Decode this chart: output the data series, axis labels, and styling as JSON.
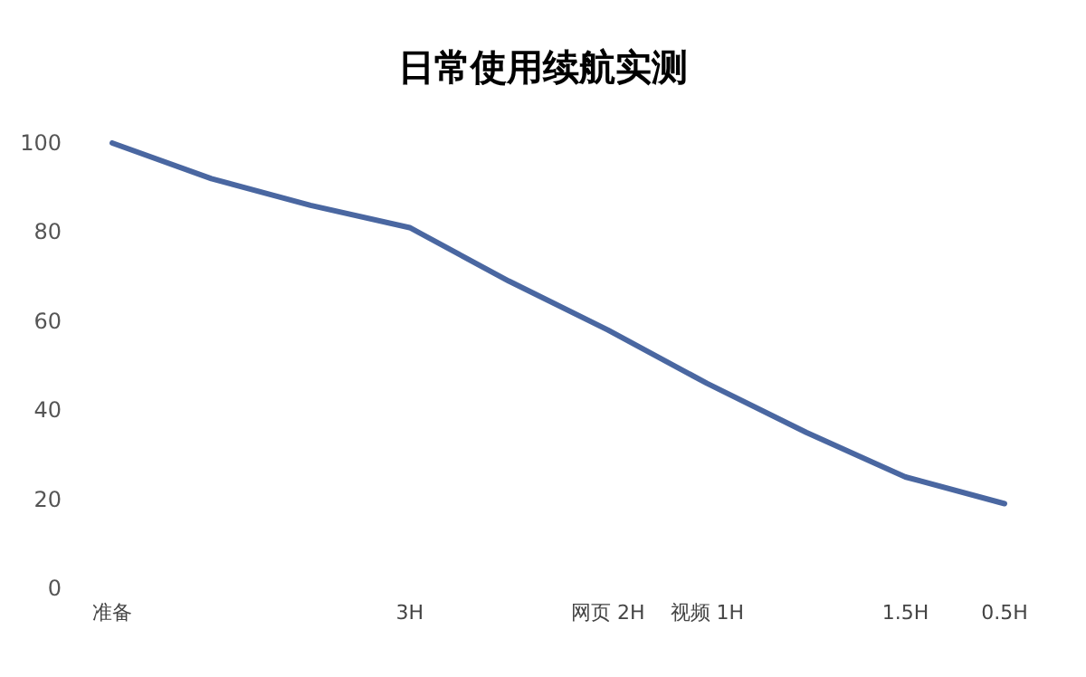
{
  "chart_data": {
    "type": "line",
    "title": "日常使用续航实测",
    "categories": [
      "准备",
      null,
      null,
      "3H",
      null,
      "网页 2H",
      "视频 1H",
      null,
      "1.5H",
      "0.5H"
    ],
    "series": [
      {
        "color": "#4a67a1",
        "values": [
          100,
          92,
          86,
          81,
          69,
          58,
          46,
          35,
          25,
          19
        ]
      }
    ],
    "ylim": [
      0,
      100
    ],
    "yticks": [
      0,
      20,
      40,
      60,
      80,
      100
    ],
    "grid": false,
    "marker": "none",
    "line_style": "solid"
  }
}
